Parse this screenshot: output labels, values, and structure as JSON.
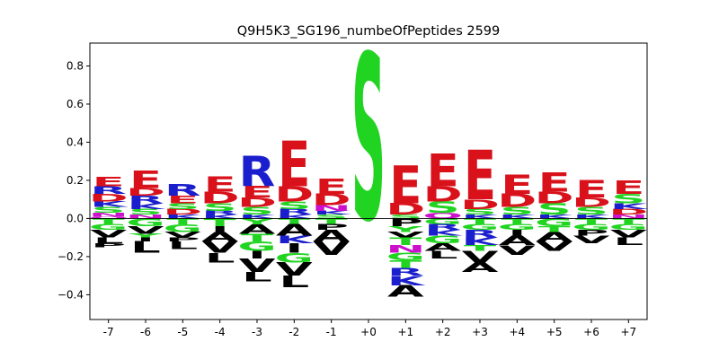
{
  "chart_data": {
    "type": "sequence-logo",
    "title": "Q9H5K3_SG196_numbeOfPeptides 2599",
    "xlabel": "",
    "ylabel": "",
    "positions": [
      "-7",
      "-6",
      "-5",
      "-4",
      "-3",
      "-2",
      "-1",
      "+0",
      "+1",
      "+2",
      "+3",
      "+4",
      "+5",
      "+6",
      "+7"
    ],
    "ylim": [
      -0.53,
      0.92
    ],
    "yticks": [
      -0.4,
      -0.2,
      0.0,
      0.2,
      0.4,
      0.6,
      0.8
    ],
    "ytick_labels": [
      "−0.4",
      "−0.2",
      "0.0",
      "0.2",
      "0.4",
      "0.6",
      "0.8"
    ],
    "colors": {
      "acidic": "#d8111b",
      "basic": "#1a1ecc",
      "polar": "#22d422",
      "hydrophobic": "#000000",
      "amide": "#cc11cc"
    },
    "residue_colors": {
      "E": "#d8111b",
      "D": "#d8111b",
      "R": "#1a1ecc",
      "K": "#1a1ecc",
      "H": "#1a1ecc",
      "S": "#22d422",
      "T": "#22d422",
      "G": "#22d422",
      "Y": "#22d422",
      "C": "#22d422",
      "N": "#cc11cc",
      "Q": "#cc11cc",
      "A": "#000000",
      "V": "#000000",
      "L": "#000000",
      "I": "#000000",
      "P": "#000000",
      "F": "#000000",
      "M": "#000000",
      "W": "#000000"
    },
    "columns": [
      {
        "pos": "-7",
        "positive": [
          [
            "E",
            0.05
          ],
          [
            "D",
            0.04
          ],
          [
            "R",
            0.04
          ],
          [
            "S",
            0.03
          ],
          [
            "K",
            0.03
          ],
          [
            "N",
            0.02
          ],
          [
            "Q",
            0.01
          ]
        ],
        "negative": [
          [
            "T",
            0.03
          ],
          [
            "G",
            0.03
          ],
          [
            "V",
            0.04
          ],
          [
            "L",
            0.03
          ],
          [
            "P",
            0.02
          ]
        ]
      },
      {
        "pos": "-6",
        "positive": [
          [
            "E",
            0.09
          ],
          [
            "R",
            0.04
          ],
          [
            "D",
            0.04
          ],
          [
            "S",
            0.03
          ],
          [
            "K",
            0.03
          ],
          [
            "N",
            0.02
          ]
        ],
        "negative": [
          [
            "G",
            0.04
          ],
          [
            "V",
            0.04
          ],
          [
            "Y",
            0.02
          ],
          [
            "I",
            0.02
          ],
          [
            "L",
            0.06
          ]
        ]
      },
      {
        "pos": "-5",
        "positive": [
          [
            "R",
            0.06
          ],
          [
            "E",
            0.04
          ],
          [
            "D",
            0.03
          ],
          [
            "S",
            0.03
          ],
          [
            "K",
            0.02
          ]
        ],
        "negative": [
          [
            "T",
            0.03
          ],
          [
            "G",
            0.04
          ],
          [
            "V",
            0.03
          ],
          [
            "P",
            0.02
          ],
          [
            "L",
            0.04
          ]
        ]
      },
      {
        "pos": "-4",
        "positive": [
          [
            "E",
            0.08
          ],
          [
            "D",
            0.06
          ],
          [
            "S",
            0.04
          ],
          [
            "K",
            0.02
          ],
          [
            "R",
            0.02
          ]
        ],
        "negative": [
          [
            "T",
            0.04
          ],
          [
            "I",
            0.03
          ],
          [
            "A",
            0.05
          ],
          [
            "V",
            0.06
          ],
          [
            "L",
            0.05
          ]
        ]
      },
      {
        "pos": "-3",
        "positive": [
          [
            "R",
            0.16
          ],
          [
            "E",
            0.06
          ],
          [
            "D",
            0.05
          ],
          [
            "S",
            0.04
          ],
          [
            "K",
            0.02
          ]
        ],
        "negative": [
          [
            "Y",
            0.03
          ],
          [
            "A",
            0.05
          ],
          [
            "T",
            0.04
          ],
          [
            "G",
            0.05
          ],
          [
            "I",
            0.04
          ],
          [
            "V",
            0.07
          ],
          [
            "L",
            0.05
          ]
        ]
      },
      {
        "pos": "-2",
        "positive": [
          [
            "E",
            0.24
          ],
          [
            "D",
            0.08
          ],
          [
            "S",
            0.04
          ],
          [
            "R",
            0.03
          ],
          [
            "K",
            0.02
          ]
        ],
        "negative": [
          [
            "T",
            0.03
          ],
          [
            "A",
            0.06
          ],
          [
            "K",
            0.04
          ],
          [
            "I",
            0.05
          ],
          [
            "G",
            0.05
          ],
          [
            "V",
            0.07
          ],
          [
            "L",
            0.06
          ]
        ]
      },
      {
        "pos": "-1",
        "positive": [
          [
            "E",
            0.08
          ],
          [
            "D",
            0.06
          ],
          [
            "N",
            0.03
          ],
          [
            "S",
            0.02
          ],
          [
            "K",
            0.02
          ]
        ],
        "negative": [
          [
            "T",
            0.03
          ],
          [
            "P",
            0.03
          ],
          [
            "A",
            0.06
          ],
          [
            "V",
            0.07
          ]
        ]
      },
      {
        "pos": "+0",
        "positive": [
          [
            "S",
            0.87
          ]
        ],
        "negative": []
      },
      {
        "pos": "+1",
        "positive": [
          [
            "E",
            0.2
          ],
          [
            "D",
            0.06
          ],
          [
            "S",
            0.02
          ]
        ],
        "negative": [
          [
            "P",
            0.04
          ],
          [
            "Y",
            0.03
          ],
          [
            "V",
            0.03
          ],
          [
            "T",
            0.04
          ],
          [
            "N",
            0.04
          ],
          [
            "G",
            0.04
          ],
          [
            "T",
            0.04
          ],
          [
            "R",
            0.04
          ],
          [
            "K",
            0.05
          ],
          [
            "A",
            0.06
          ]
        ]
      },
      {
        "pos": "+2",
        "positive": [
          [
            "E",
            0.17
          ],
          [
            "D",
            0.08
          ],
          [
            "S",
            0.06
          ],
          [
            "Q",
            0.03
          ]
        ],
        "negative": [
          [
            "G",
            0.03
          ],
          [
            "R",
            0.03
          ],
          [
            "K",
            0.03
          ],
          [
            "G",
            0.04
          ],
          [
            "A",
            0.04
          ],
          [
            "L",
            0.04
          ]
        ]
      },
      {
        "pos": "+3",
        "positive": [
          [
            "E",
            0.26
          ],
          [
            "S",
            0.03
          ],
          [
            "D",
            0.05
          ],
          [
            "K",
            0.02
          ]
        ],
        "negative": [
          [
            "T",
            0.03
          ],
          [
            "G",
            0.03
          ],
          [
            "R",
            0.04
          ],
          [
            "K",
            0.04
          ],
          [
            "T",
            0.03
          ],
          [
            "V",
            0.06
          ],
          [
            "A",
            0.05
          ]
        ]
      },
      {
        "pos": "+4",
        "positive": [
          [
            "E",
            0.1
          ],
          [
            "D",
            0.07
          ],
          [
            "S",
            0.04
          ],
          [
            "K",
            0.02
          ]
        ],
        "negative": [
          [
            "T",
            0.03
          ],
          [
            "G",
            0.03
          ],
          [
            "I",
            0.03
          ],
          [
            "A",
            0.05
          ],
          [
            "V",
            0.05
          ]
        ]
      },
      {
        "pos": "+5",
        "positive": [
          [
            "E",
            0.1
          ],
          [
            "S",
            0.06
          ],
          [
            "D",
            0.06
          ],
          [
            "K",
            0.02
          ]
        ],
        "negative": [
          [
            "G",
            0.04
          ],
          [
            "T",
            0.03
          ],
          [
            "A",
            0.05
          ],
          [
            "V",
            0.05
          ]
        ]
      },
      {
        "pos": "+6",
        "positive": [
          [
            "E",
            0.09
          ],
          [
            "D",
            0.05
          ],
          [
            "S",
            0.04
          ],
          [
            "K",
            0.02
          ]
        ],
        "negative": [
          [
            "T",
            0.03
          ],
          [
            "G",
            0.03
          ],
          [
            "P",
            0.03
          ],
          [
            "V",
            0.04
          ]
        ]
      },
      {
        "pos": "+7",
        "positive": [
          [
            "E",
            0.07
          ],
          [
            "S",
            0.05
          ],
          [
            "D",
            0.03
          ],
          [
            "K",
            0.03
          ],
          [
            "N",
            0.02
          ]
        ],
        "negative": [
          [
            "T",
            0.03
          ],
          [
            "G",
            0.03
          ],
          [
            "V",
            0.04
          ],
          [
            "L",
            0.04
          ]
        ]
      }
    ]
  }
}
